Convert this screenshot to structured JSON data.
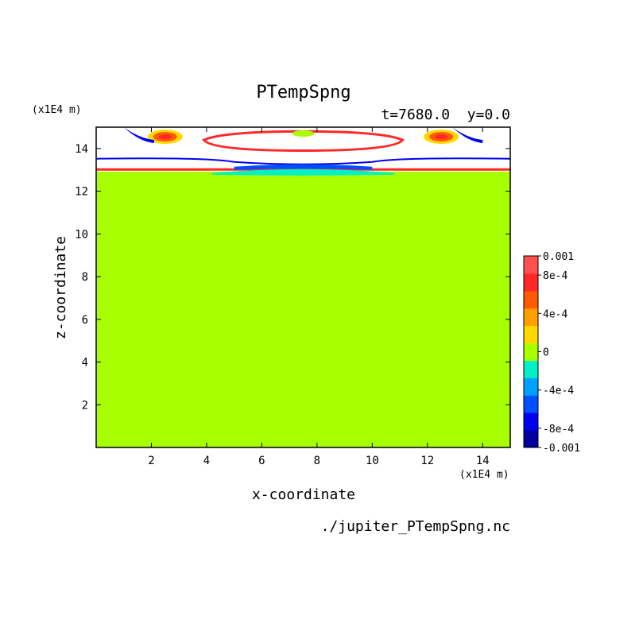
{
  "chart_data": {
    "type": "heatmap",
    "title": "PTempSpng",
    "subtitle": "t=7680.0  y=0.0",
    "xlabel": "x-coordinate",
    "ylabel": "z-coordinate",
    "x_unit": "(x1E4 m)",
    "y_unit": "(x1E4 m)",
    "source_file": "./jupiter_PTempSpng.nc",
    "xlim": [
      0,
      15
    ],
    "ylim": [
      0,
      15
    ],
    "x_ticks": [
      2,
      4,
      6,
      8,
      10,
      12,
      14
    ],
    "y_ticks": [
      2,
      4,
      6,
      8,
      10,
      12,
      14
    ],
    "background_value": 0,
    "colorbar": {
      "min": -0.001,
      "max": 0.001,
      "levels": [
        -0.001,
        -0.0008,
        -0.0006,
        -0.0004,
        -0.0002,
        0,
        0.0002,
        0.0004,
        0.0006,
        0.0008,
        0.001
      ],
      "tick_labels": [
        "-0.001",
        "-8e-4",
        "-4e-4",
        "0",
        "4e-4",
        "8e-4",
        "0.001"
      ],
      "tick_values": [
        -0.001,
        -0.0008,
        -0.0004,
        0,
        0.0004,
        0.0008,
        0.001
      ],
      "colors": [
        "#00009c",
        "#0000f0",
        "#0050ff",
        "#00a0ff",
        "#00f0c8",
        "#a8ff00",
        "#ffd800",
        "#ffa000",
        "#ff5a00",
        "#ff2828",
        "#ff5050"
      ]
    },
    "features": {
      "zero_band_z": [
        13.0,
        15.0
      ],
      "anomaly_region_x": [
        0,
        15
      ],
      "positive_lobes_x": [
        2.5,
        12.5
      ],
      "negative_band_x": [
        4.2,
        10.8
      ]
    }
  }
}
